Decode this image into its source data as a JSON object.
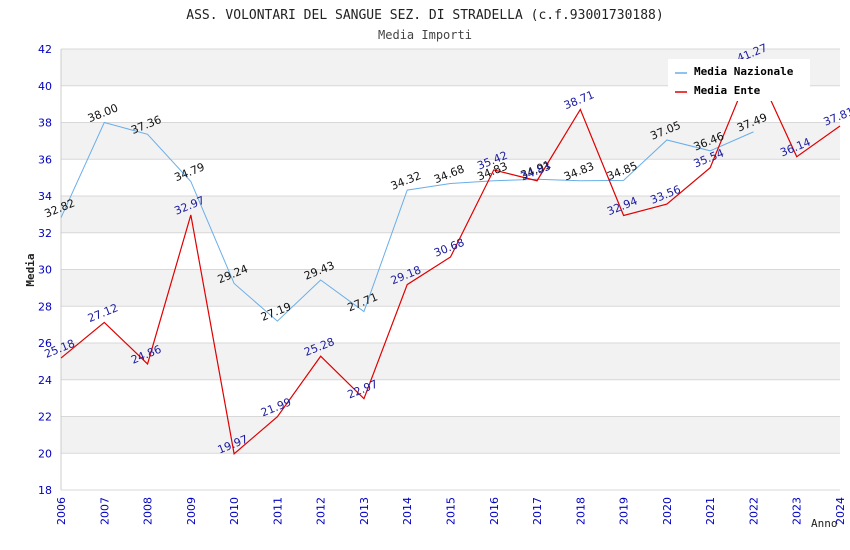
{
  "colors": {
    "nazionale": "#6aaee8",
    "ente": "#e00000",
    "axis_labels": "#0000c0",
    "ente_labels": "#1a1aa0",
    "band": "#f2f2f2",
    "grid": "#d8d8d8"
  },
  "chart_data": {
    "type": "line",
    "title": "ASS. VOLONTARI DEL SANGUE SEZ. DI STRADELLA (c.f.93001730188)",
    "subtitle": "Media Importi",
    "xlabel": "Anno",
    "ylabel": "Media",
    "ylim": [
      18,
      42
    ],
    "yticks": [
      18,
      20,
      22,
      24,
      26,
      28,
      30,
      32,
      34,
      36,
      38,
      40,
      42
    ],
    "legend_position": "top-right",
    "grid": true,
    "x": [
      "2006",
      "2007",
      "2008",
      "2009",
      "2010",
      "2011",
      "2012",
      "2013",
      "2014",
      "2015",
      "2016",
      "2017",
      "2018",
      "2019",
      "2020",
      "2021",
      "2022",
      "2023",
      "2024"
    ],
    "series": [
      {
        "name": "Media Nazionale",
        "values": [
          32.82,
          38.0,
          37.36,
          34.79,
          29.24,
          27.19,
          29.43,
          27.71,
          34.32,
          34.68,
          34.83,
          34.91,
          34.83,
          34.85,
          37.05,
          36.46,
          37.49,
          null,
          null
        ],
        "labels": [
          "32.82",
          "38.00",
          "37.36",
          "34.79",
          "29.24",
          "27.19",
          "29.43",
          "27.71",
          "34.32",
          "34.68",
          "34.83",
          "34.91",
          "34.83",
          "34.85",
          "37.05",
          "36.46",
          "37.49",
          null,
          null
        ]
      },
      {
        "name": "Media Ente",
        "values": [
          25.18,
          27.12,
          24.86,
          32.97,
          19.97,
          21.99,
          25.28,
          22.97,
          29.18,
          30.68,
          35.42,
          34.83,
          38.71,
          32.94,
          33.56,
          35.54,
          41.27,
          36.14,
          37.81
        ],
        "labels": [
          "25.18",
          "27.12",
          "24.86",
          "32.97",
          "19.97",
          "21.99",
          "25.28",
          "22.97",
          "29.18",
          "30.68",
          "35.42",
          "34.83",
          "38.71",
          "32.94",
          "33.56",
          "35.54",
          "41.27",
          "36.14",
          "37.81"
        ]
      }
    ]
  }
}
